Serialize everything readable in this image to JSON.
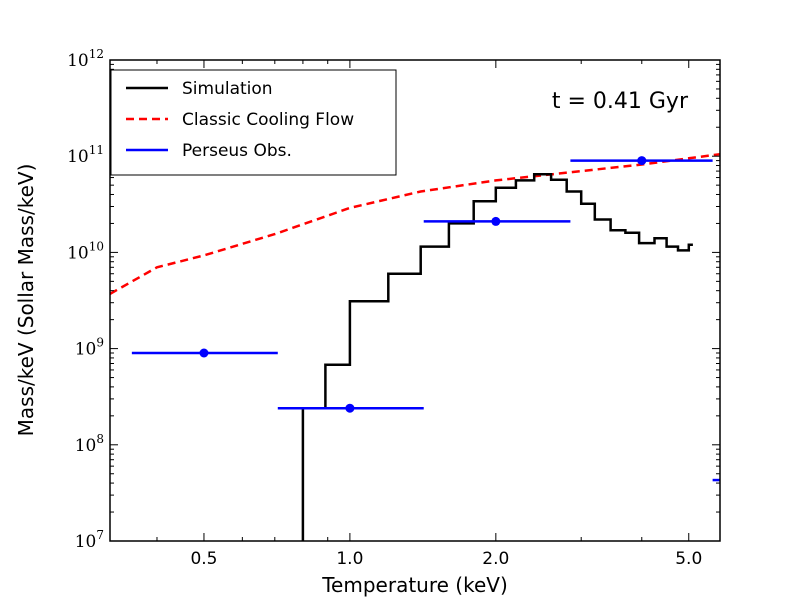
{
  "chart_data": {
    "type": "line",
    "xscale": "log",
    "yscale": "log",
    "xlim": [
      0.32,
      5.8
    ],
    "ylim": [
      10000000.0,
      1000000000000.0
    ],
    "xlabel": "Temperature (keV)",
    "ylabel": "Mass/keV (Sollar Mass/keV)",
    "xticks": [
      {
        "value": 0.5,
        "label": "0.5"
      },
      {
        "value": 1.0,
        "label": "1.0"
      },
      {
        "value": 2.0,
        "label": "2.0"
      },
      {
        "value": 5.0,
        "label": "5.0"
      }
    ],
    "yticks": [
      {
        "value": 10000000.0,
        "base": "10",
        "exp": "7"
      },
      {
        "value": 100000000.0,
        "base": "10",
        "exp": "8"
      },
      {
        "value": 1000000000.0,
        "base": "10",
        "exp": "9"
      },
      {
        "value": 10000000000.0,
        "base": "10",
        "exp": "10"
      },
      {
        "value": 100000000000.0,
        "base": "10",
        "exp": "11"
      },
      {
        "value": 1000000000000.0,
        "base": "10",
        "exp": "12"
      }
    ],
    "annotation": "t = 0.41 Gyr",
    "legend_position": "upper-left",
    "series": [
      {
        "name": "Simulation",
        "style": "step",
        "color": "#000000",
        "step_edges": [
          0.8,
          0.89,
          1.0,
          1.2,
          1.4,
          1.6,
          1.8,
          2.0,
          2.2,
          2.4,
          2.6,
          2.8,
          3.0,
          3.2,
          3.45,
          3.7,
          3.95,
          4.25,
          4.5,
          4.75,
          5.0,
          5.1
        ],
        "step_values": [
          240000000.0,
          680000000.0,
          3100000000.0,
          6000000000.0,
          11500000000.0,
          20000000000.0,
          34000000000.0,
          47000000000.0,
          56000000000.0,
          65000000000.0,
          57000000000.0,
          43000000000.0,
          32000000000.0,
          22000000000.0,
          17000000000.0,
          16000000000.0,
          12500000000.0,
          14000000000.0,
          11500000000.0,
          10500000000.0,
          12000000000.0
        ],
        "drop_to": 10000000.0
      },
      {
        "name": "Classic Cooling Flow",
        "style": "dashed",
        "color": "#ff0000",
        "x": [
          0.32,
          0.4,
          0.5,
          0.7,
          1.0,
          1.4,
          2.0,
          3.0,
          4.0,
          5.0,
          5.8
        ],
        "y": [
          3700000000.0,
          7000000000.0,
          9300000000.0,
          15500000000.0,
          29000000000.0,
          43000000000.0,
          56000000000.0,
          70000000000.0,
          82000000000.0,
          95000000000.0,
          105000000000.0
        ]
      },
      {
        "name": "Perseus Obs.",
        "style": "errorbar",
        "color": "#0000ff",
        "points": [
          {
            "x": 0.5,
            "y": 900000000.0,
            "xerr_low": 0.355,
            "xerr_high": 0.71
          },
          {
            "x": 1.0,
            "y": 240000000.0,
            "xerr_low": 0.71,
            "xerr_high": 1.42
          },
          {
            "x": 2.0,
            "y": 21000000000.0,
            "xerr_low": 1.42,
            "xerr_high": 2.85
          },
          {
            "x": 4.0,
            "y": 90000000000.0,
            "xerr_low": 2.85,
            "xerr_high": 5.6
          }
        ],
        "offscale_segment": {
          "y": 43000000.0,
          "x_low": 5.6,
          "x_high": 5.8
        }
      }
    ]
  }
}
